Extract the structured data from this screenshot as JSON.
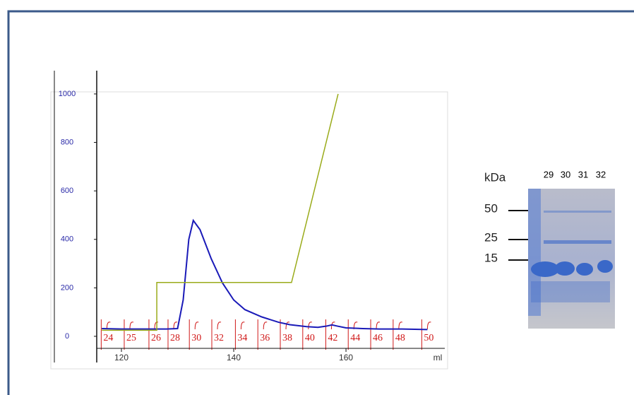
{
  "chart_data": {
    "type": "line",
    "x_label": "ml",
    "xlim": [
      115.6,
      177.6
    ],
    "xticks": [
      120,
      140,
      160
    ],
    "ylim": [
      -108,
      1096
    ],
    "yticks": [
      0,
      200,
      400,
      600,
      800,
      1000
    ],
    "series": [
      {
        "color": "#1a1ab8",
        "x": [
          116.5,
          120,
          125,
          128,
          130,
          131,
          132,
          132.8,
          134,
          135,
          136,
          138,
          140,
          142,
          145,
          148,
          150,
          153,
          155,
          156.5,
          157.5,
          158.5,
          160,
          163,
          166,
          170,
          174.5
        ],
        "values": [
          32,
          30,
          30,
          30,
          32,
          150,
          400,
          478,
          440,
          380,
          320,
          220,
          150,
          110,
          80,
          58,
          48,
          40,
          37,
          42,
          47,
          42,
          35,
          32,
          30,
          30,
          28
        ]
      },
      {
        "color": "#9aab1a",
        "x": [
          116.5,
          126.3,
          126.3,
          150.3,
          158.6
        ],
        "values": [
          25,
          25,
          222,
          222,
          1000
        ]
      }
    ],
    "fractions": [
      {
        "value": 116.4,
        "label": "24"
      },
      {
        "value": 120.5,
        "label": "25"
      },
      {
        "value": 124.9,
        "label": "26"
      },
      {
        "value": 128.3,
        "label": "28"
      },
      {
        "value": 132.1,
        "label": "30"
      },
      {
        "value": 136.1,
        "label": "32"
      },
      {
        "value": 140.3,
        "label": "34"
      },
      {
        "value": 144.3,
        "label": "36"
      },
      {
        "value": 148.3,
        "label": "38"
      },
      {
        "value": 152.3,
        "label": "40"
      },
      {
        "value": 156.4,
        "label": "42"
      },
      {
        "value": 160.4,
        "label": "44"
      },
      {
        "value": 164.4,
        "label": "46"
      },
      {
        "value": 168.4,
        "label": "48"
      },
      {
        "value": 173.5,
        "label": "50"
      }
    ]
  },
  "gel": {
    "unit": "kDa",
    "lanes": [
      "29",
      "30",
      "31",
      "32"
    ],
    "markers": [
      "50",
      "25",
      "15"
    ]
  }
}
